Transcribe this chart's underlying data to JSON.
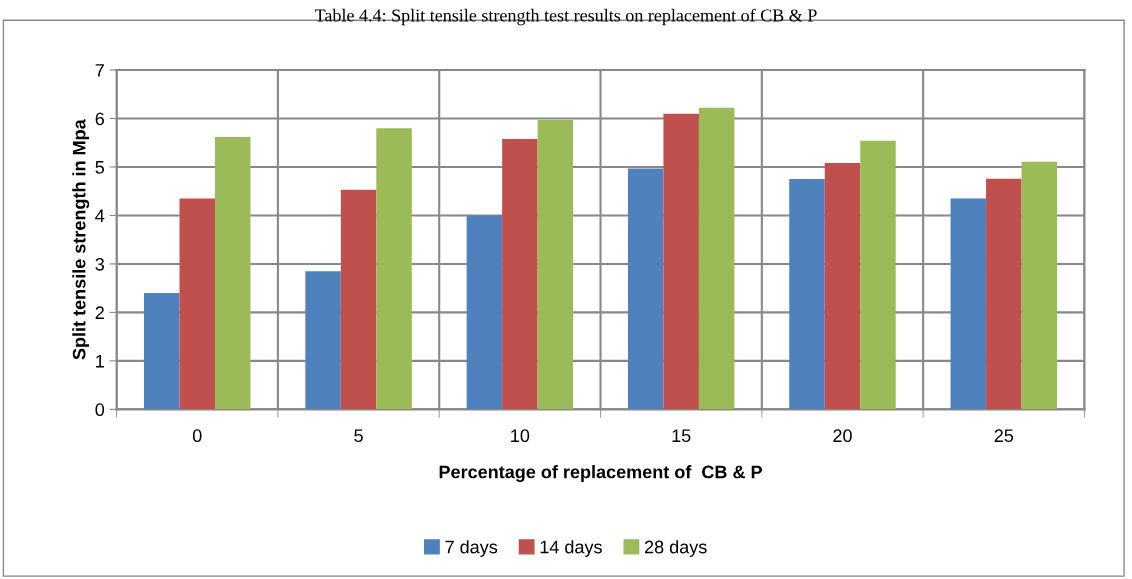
{
  "chart_data": {
    "type": "bar",
    "title": "Table 4.4: Split tensile strength test results on replacement of CB & P",
    "xlabel": "Percentage of replacement of  CB & P",
    "ylabel": "Split tensile strength in Mpa",
    "categories": [
      "0",
      "5",
      "10",
      "15",
      "20",
      "25"
    ],
    "series": [
      {
        "name": "7 days",
        "color": "#4f81bd",
        "values": [
          2.4,
          2.85,
          4.0,
          4.97,
          4.75,
          4.35
        ]
      },
      {
        "name": "14 days",
        "color": "#c0504d",
        "values": [
          4.35,
          4.53,
          5.58,
          6.1,
          5.08,
          4.76
        ]
      },
      {
        "name": "28 days",
        "color": "#9bbb59",
        "values": [
          5.62,
          5.8,
          5.97,
          6.22,
          5.54,
          5.11
        ]
      }
    ],
    "ylim": [
      0,
      7
    ],
    "yticks": [
      0,
      1,
      2,
      3,
      4,
      5,
      6,
      7
    ],
    "grid": true,
    "legend": "bottom"
  }
}
